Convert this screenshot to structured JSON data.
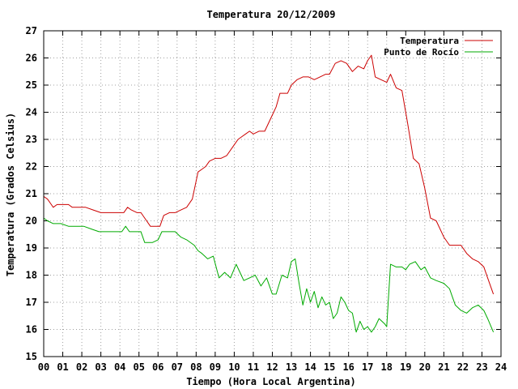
{
  "chart_data": {
    "type": "line",
    "title": "Temperatura 20/12/2009",
    "xlabel": "Tiempo (Hora Local Argentina)",
    "ylabel": "Temperatura (Grados Celsius)",
    "xlim": [
      0,
      24
    ],
    "ylim": [
      15,
      27
    ],
    "xticks": [
      "00",
      "01",
      "02",
      "03",
      "04",
      "05",
      "06",
      "07",
      "08",
      "09",
      "10",
      "11",
      "12",
      "13",
      "14",
      "15",
      "16",
      "17",
      "18",
      "19",
      "20",
      "21",
      "22",
      "23",
      "24"
    ],
    "yticks": [
      15,
      16,
      17,
      18,
      19,
      20,
      21,
      22,
      23,
      24,
      25,
      26,
      27
    ],
    "grid": true,
    "legend_position": "top-right",
    "series": [
      {
        "name": "Temperatura",
        "color": "#cc0000",
        "x": [
          0,
          0.2,
          0.4,
          0.5,
          0.7,
          1.0,
          1.3,
          1.5,
          1.9,
          2.2,
          2.6,
          3.0,
          3.3,
          3.6,
          4.0,
          4.2,
          4.4,
          4.6,
          4.9,
          5.1,
          5.3,
          5.6,
          5.9,
          6.1,
          6.3,
          6.6,
          6.9,
          7.2,
          7.5,
          7.8,
          8.1,
          8.3,
          8.5,
          8.7,
          9.0,
          9.3,
          9.6,
          10.0,
          10.2,
          10.4,
          10.6,
          10.8,
          11.0,
          11.3,
          11.6,
          12.0,
          12.2,
          12.4,
          12.8,
          13.0,
          13.3,
          13.6,
          13.9,
          14.2,
          14.5,
          14.8,
          15.0,
          15.3,
          15.6,
          15.9,
          16.2,
          16.5,
          16.8,
          17.0,
          17.2,
          17.4,
          17.7,
          18.0,
          18.2,
          18.5,
          18.8,
          19.1,
          19.4,
          19.7,
          20.0,
          20.3,
          20.6,
          21.0,
          21.3,
          21.6,
          21.9,
          22.2,
          22.5,
          22.8,
          23.1,
          23.3,
          23.6
        ],
        "y": [
          20.9,
          20.8,
          20.6,
          20.5,
          20.6,
          20.6,
          20.6,
          20.5,
          20.5,
          20.5,
          20.4,
          20.3,
          20.3,
          20.3,
          20.3,
          20.3,
          20.5,
          20.4,
          20.3,
          20.3,
          20.1,
          19.8,
          19.8,
          19.8,
          20.2,
          20.3,
          20.3,
          20.4,
          20.5,
          20.8,
          21.8,
          21.9,
          22.0,
          22.2,
          22.3,
          22.3,
          22.4,
          22.8,
          23.0,
          23.1,
          23.2,
          23.3,
          23.2,
          23.3,
          23.3,
          23.9,
          24.2,
          24.7,
          24.7,
          25.0,
          25.2,
          25.3,
          25.3,
          25.2,
          25.3,
          25.4,
          25.4,
          25.8,
          25.9,
          25.8,
          25.5,
          25.7,
          25.6,
          25.9,
          26.1,
          25.3,
          25.2,
          25.1,
          25.4,
          24.9,
          24.8,
          23.6,
          22.3,
          22.1,
          21.2,
          20.1,
          20.0,
          19.4,
          19.1,
          19.1,
          19.1,
          18.8,
          18.6,
          18.5,
          18.3,
          17.9,
          17.3
        ]
      },
      {
        "name": "Punto de Rocío",
        "color": "#00aa00",
        "x": [
          0,
          0.2,
          0.5,
          0.9,
          1.3,
          1.7,
          2.1,
          2.5,
          2.9,
          3.3,
          3.7,
          4.1,
          4.3,
          4.5,
          4.9,
          5.1,
          5.3,
          5.7,
          6.0,
          6.2,
          6.5,
          6.9,
          7.2,
          7.5,
          7.9,
          8.1,
          8.3,
          8.6,
          8.9,
          9.2,
          9.5,
          9.8,
          10.1,
          10.3,
          10.5,
          10.8,
          11.1,
          11.4,
          11.7,
          12.0,
          12.2,
          12.5,
          12.8,
          13.0,
          13.2,
          13.4,
          13.6,
          13.8,
          14.0,
          14.2,
          14.4,
          14.6,
          14.8,
          15.0,
          15.2,
          15.4,
          15.6,
          15.8,
          16.0,
          16.2,
          16.4,
          16.6,
          16.8,
          17.0,
          17.2,
          17.4,
          17.6,
          17.9,
          18.0,
          18.2,
          18.5,
          18.8,
          19.0,
          19.2,
          19.5,
          19.8,
          20.0,
          20.3,
          20.6,
          21.0,
          21.3,
          21.6,
          21.9,
          22.2,
          22.5,
          22.8,
          23.1,
          23.3,
          23.6
        ],
        "y": [
          20.1,
          20.0,
          19.9,
          19.9,
          19.8,
          19.8,
          19.8,
          19.7,
          19.6,
          19.6,
          19.6,
          19.6,
          19.8,
          19.6,
          19.6,
          19.6,
          19.2,
          19.2,
          19.3,
          19.6,
          19.6,
          19.6,
          19.4,
          19.3,
          19.1,
          18.9,
          18.8,
          18.6,
          18.7,
          17.9,
          18.1,
          17.9,
          18.4,
          18.1,
          17.8,
          17.9,
          18.0,
          17.6,
          17.9,
          17.3,
          17.3,
          18.0,
          17.9,
          18.5,
          18.6,
          17.7,
          16.9,
          17.5,
          17.0,
          17.4,
          16.8,
          17.2,
          16.9,
          17.0,
          16.4,
          16.6,
          17.2,
          17.0,
          16.7,
          16.6,
          15.9,
          16.3,
          16.0,
          16.1,
          15.9,
          16.1,
          16.4,
          16.2,
          16.1,
          18.4,
          18.3,
          18.3,
          18.2,
          18.4,
          18.5,
          18.2,
          18.3,
          17.9,
          17.8,
          17.7,
          17.5,
          16.9,
          16.7,
          16.6,
          16.8,
          16.9,
          16.7,
          16.4,
          15.9
        ]
      }
    ]
  }
}
